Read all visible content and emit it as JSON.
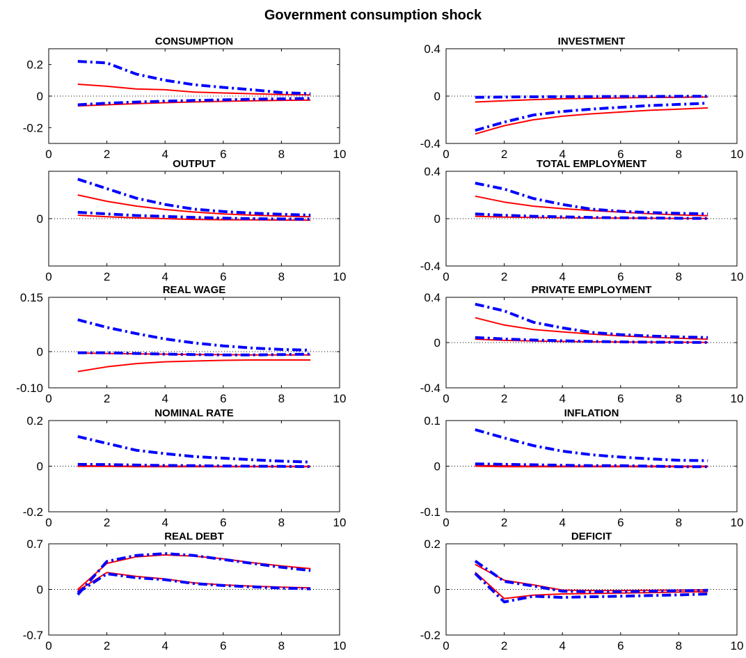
{
  "figure": {
    "title": "Government consumption shock"
  },
  "chart_data": [
    {
      "type": "line",
      "title": "CONSUMPTION",
      "xlim": [
        0,
        10
      ],
      "ylim": [
        -0.3,
        0.3
      ],
      "xticks": [
        0,
        2,
        4,
        6,
        8,
        10
      ],
      "xtick_labels": [
        "0",
        "2",
        "4",
        "6",
        "8",
        "10"
      ],
      "yticks": [
        0.2,
        0,
        -0.2
      ],
      "ytick_labels": [
        "0.2",
        "0",
        "-0.2"
      ],
      "x": [
        1,
        2,
        3,
        4,
        5,
        6,
        7,
        8,
        9
      ],
      "series": [
        {
          "style": "solid",
          "color": "#ff0000",
          "values": [
            0.075,
            0.062,
            0.045,
            0.04,
            0.025,
            0.02,
            0.015,
            0.01,
            0.008
          ]
        },
        {
          "style": "solid",
          "color": "#ff0000",
          "values": [
            -0.062,
            -0.055,
            -0.048,
            -0.042,
            -0.037,
            -0.033,
            -0.03,
            -0.027,
            -0.025
          ]
        },
        {
          "style": "dashdot",
          "color": "#0000ff",
          "values": [
            0.22,
            0.21,
            0.14,
            0.1,
            0.072,
            0.055,
            0.04,
            0.022,
            0.015
          ]
        },
        {
          "style": "dashdot",
          "color": "#0000ff",
          "values": [
            -0.055,
            -0.045,
            -0.038,
            -0.032,
            -0.028,
            -0.024,
            -0.02,
            -0.017,
            -0.015
          ]
        }
      ]
    },
    {
      "type": "line",
      "title": "INVESTMENT",
      "xlim": [
        0,
        10
      ],
      "ylim": [
        -0.4,
        0.4
      ],
      "xticks": [
        0,
        2,
        4,
        6,
        8,
        10
      ],
      "xtick_labels": [
        "0",
        "2",
        "4",
        "6",
        "8",
        "10"
      ],
      "yticks": [
        0.4,
        0,
        -0.4
      ],
      "ytick_labels": [
        "0.4",
        "0",
        "-0.4"
      ],
      "x": [
        1,
        2,
        3,
        4,
        5,
        6,
        7,
        8,
        9
      ],
      "series": [
        {
          "style": "solid",
          "color": "#ff0000",
          "values": [
            -0.05,
            -0.04,
            -0.03,
            -0.022,
            -0.018,
            -0.015,
            -0.012,
            -0.01,
            -0.008
          ]
        },
        {
          "style": "solid",
          "color": "#ff0000",
          "values": [
            -0.32,
            -0.25,
            -0.2,
            -0.17,
            -0.15,
            -0.135,
            -0.12,
            -0.11,
            -0.1
          ]
        },
        {
          "style": "dashdot",
          "color": "#0000ff",
          "values": [
            -0.01,
            -0.008,
            -0.006,
            -0.005,
            -0.004,
            -0.003,
            -0.003,
            -0.002,
            -0.002
          ]
        },
        {
          "style": "dashdot",
          "color": "#0000ff",
          "values": [
            -0.29,
            -0.22,
            -0.16,
            -0.13,
            -0.11,
            -0.095,
            -0.08,
            -0.07,
            -0.06
          ]
        }
      ]
    },
    {
      "type": "line",
      "title": "OUTPUT",
      "xlim": [
        0,
        10
      ],
      "ylim": [
        -0.3,
        0.3
      ],
      "xticks": [
        0,
        2,
        4,
        6,
        8,
        10
      ],
      "xtick_labels": [
        "0",
        "2",
        "4",
        "6",
        "8",
        "10"
      ],
      "yticks": [
        0
      ],
      "ytick_labels": [
        "0"
      ],
      "x": [
        1,
        2,
        3,
        4,
        5,
        6,
        7,
        8,
        9
      ],
      "series": [
        {
          "style": "solid",
          "color": "#ff0000",
          "values": [
            0.15,
            0.11,
            0.08,
            0.058,
            0.042,
            0.03,
            0.022,
            0.016,
            0.012
          ]
        },
        {
          "style": "solid",
          "color": "#ff0000",
          "values": [
            0.022,
            0.012,
            0.005,
            0.0,
            -0.005,
            -0.007,
            -0.008,
            -0.009,
            -0.01
          ]
        },
        {
          "style": "dashdot",
          "color": "#0000ff",
          "values": [
            0.25,
            0.19,
            0.13,
            0.09,
            0.06,
            0.045,
            0.035,
            0.028,
            0.022
          ]
        },
        {
          "style": "dashdot",
          "color": "#0000ff",
          "values": [
            0.04,
            0.03,
            0.02,
            0.014,
            0.008,
            0.003,
            0.0,
            -0.002,
            -0.004
          ]
        }
      ]
    },
    {
      "type": "line",
      "title": "TOTAL EMPLOYMENT",
      "xlim": [
        0,
        10
      ],
      "ylim": [
        -0.4,
        0.4
      ],
      "xticks": [
        0,
        2,
        4,
        6,
        8,
        10
      ],
      "xtick_labels": [
        "0",
        "2",
        "4",
        "6",
        "8",
        "10"
      ],
      "yticks": [
        0.4,
        0,
        -0.4
      ],
      "ytick_labels": [
        "0.4",
        "0",
        "-0.4"
      ],
      "x": [
        1,
        2,
        3,
        4,
        5,
        6,
        7,
        8,
        9
      ],
      "series": [
        {
          "style": "solid",
          "color": "#ff0000",
          "values": [
            0.19,
            0.14,
            0.105,
            0.085,
            0.068,
            0.055,
            0.042,
            0.032,
            0.025
          ]
        },
        {
          "style": "solid",
          "color": "#ff0000",
          "values": [
            0.02,
            0.013,
            0.01,
            0.007,
            0.005,
            0.004,
            0.003,
            0.002,
            0.002
          ]
        },
        {
          "style": "dashdot",
          "color": "#0000ff",
          "values": [
            0.3,
            0.25,
            0.17,
            0.12,
            0.08,
            0.062,
            0.052,
            0.045,
            0.04
          ]
        },
        {
          "style": "dashdot",
          "color": "#0000ff",
          "values": [
            0.04,
            0.028,
            0.02,
            0.015,
            0.01,
            0.007,
            0.005,
            0.003,
            0.002
          ]
        }
      ]
    },
    {
      "type": "line",
      "title": "REAL WAGE",
      "xlim": [
        0,
        10
      ],
      "ylim": [
        -0.1,
        0.15
      ],
      "xticks": [
        0,
        2,
        4,
        6,
        8,
        10
      ],
      "xtick_labels": [
        "0",
        "2",
        "4",
        "6",
        "8",
        "10"
      ],
      "yticks": [
        0.15,
        0,
        -0.1
      ],
      "ytick_labels": [
        "0.15",
        "0",
        "-0.10"
      ],
      "x": [
        1,
        2,
        3,
        4,
        5,
        6,
        7,
        8,
        9
      ],
      "series": [
        {
          "style": "solid",
          "color": "#ff0000",
          "values": [
            -0.004,
            -0.005,
            -0.006,
            -0.007,
            -0.008,
            -0.008,
            -0.009,
            -0.009,
            -0.009
          ]
        },
        {
          "style": "solid",
          "color": "#ff0000",
          "values": [
            -0.055,
            -0.042,
            -0.033,
            -0.028,
            -0.026,
            -0.024,
            -0.023,
            -0.023,
            -0.023
          ]
        },
        {
          "style": "dashdot",
          "color": "#0000ff",
          "values": [
            0.088,
            0.067,
            0.05,
            0.035,
            0.024,
            0.016,
            0.01,
            0.006,
            0.004
          ]
        },
        {
          "style": "dashdot",
          "color": "#0000ff",
          "values": [
            -0.003,
            -0.003,
            -0.005,
            -0.007,
            -0.008,
            -0.009,
            -0.009,
            -0.008,
            -0.007
          ]
        }
      ]
    },
    {
      "type": "line",
      "title": "PRIVATE EMPLOYMENT",
      "xlim": [
        0,
        10
      ],
      "ylim": [
        -0.4,
        0.4
      ],
      "xticks": [
        0,
        2,
        4,
        6,
        8,
        10
      ],
      "xtick_labels": [
        "0",
        "2",
        "4",
        "6",
        "8",
        "10"
      ],
      "yticks": [
        0.4,
        0,
        -0.4
      ],
      "ytick_labels": [
        "0.4",
        "0",
        "-0.4"
      ],
      "x": [
        1,
        2,
        3,
        4,
        5,
        6,
        7,
        8,
        9
      ],
      "series": [
        {
          "style": "solid",
          "color": "#ff0000",
          "values": [
            0.22,
            0.155,
            0.115,
            0.095,
            0.075,
            0.06,
            0.048,
            0.038,
            0.03
          ]
        },
        {
          "style": "solid",
          "color": "#ff0000",
          "values": [
            0.03,
            0.02,
            0.014,
            0.01,
            0.007,
            0.005,
            0.004,
            0.003,
            0.002
          ]
        },
        {
          "style": "dashdot",
          "color": "#0000ff",
          "values": [
            0.34,
            0.28,
            0.18,
            0.13,
            0.09,
            0.07,
            0.058,
            0.05,
            0.045
          ]
        },
        {
          "style": "dashdot",
          "color": "#0000ff",
          "values": [
            0.045,
            0.032,
            0.022,
            0.016,
            0.01,
            0.006,
            0.004,
            0.002,
            0.001
          ]
        }
      ]
    },
    {
      "type": "line",
      "title": "NOMINAL RATE",
      "xlim": [
        0,
        10
      ],
      "ylim": [
        -0.2,
        0.2
      ],
      "xticks": [
        0,
        2,
        4,
        6,
        8,
        10
      ],
      "xtick_labels": [
        "0",
        "2",
        "4",
        "6",
        "8",
        "10"
      ],
      "yticks": [
        0.2,
        0,
        -0.2
      ],
      "ytick_labels": [
        "0.2",
        "0",
        "-0.2"
      ],
      "x": [
        1,
        2,
        3,
        4,
        5,
        6,
        7,
        8,
        9
      ],
      "series": [
        {
          "style": "solid",
          "color": "#ff0000",
          "values": [
            0.002,
            0.001,
            0.0,
            0.0,
            0.0,
            -0.001,
            -0.001,
            -0.001,
            -0.001
          ]
        },
        {
          "style": "solid",
          "color": "#ff0000",
          "values": [
            -0.001,
            -0.001,
            -0.002,
            -0.002,
            -0.002,
            -0.002,
            -0.002,
            -0.002,
            -0.002
          ]
        },
        {
          "style": "dashdot",
          "color": "#0000ff",
          "values": [
            0.13,
            0.1,
            0.07,
            0.055,
            0.042,
            0.035,
            0.028,
            0.022,
            0.018
          ]
        },
        {
          "style": "dashdot",
          "color": "#0000ff",
          "values": [
            0.008,
            0.007,
            0.005,
            0.003,
            0.002,
            0.001,
            0.0,
            -0.001,
            -0.002
          ]
        }
      ]
    },
    {
      "type": "line",
      "title": "INFLATION",
      "xlim": [
        0,
        10
      ],
      "ylim": [
        -0.1,
        0.1
      ],
      "xticks": [
        0,
        2,
        4,
        6,
        8,
        10
      ],
      "xtick_labels": [
        "0",
        "2",
        "4",
        "6",
        "8",
        "10"
      ],
      "yticks": [
        0.1,
        0,
        -0.1
      ],
      "ytick_labels": [
        "0.1",
        "0",
        "-0.1"
      ],
      "x": [
        1,
        2,
        3,
        4,
        5,
        6,
        7,
        8,
        9
      ],
      "series": [
        {
          "style": "solid",
          "color": "#ff0000",
          "values": [
            0.001,
            0.001,
            0.0,
            0.0,
            0.0,
            0.0,
            0.0,
            0.0,
            0.0
          ]
        },
        {
          "style": "solid",
          "color": "#ff0000",
          "values": [
            0.0,
            -0.001,
            -0.001,
            -0.001,
            -0.001,
            -0.001,
            -0.001,
            -0.001,
            -0.001
          ]
        },
        {
          "style": "dashdot",
          "color": "#0000ff",
          "values": [
            0.08,
            0.062,
            0.045,
            0.033,
            0.025,
            0.02,
            0.016,
            0.013,
            0.012
          ]
        },
        {
          "style": "dashdot",
          "color": "#0000ff",
          "values": [
            0.005,
            0.004,
            0.003,
            0.002,
            0.001,
            0.001,
            0.0,
            -0.001,
            -0.001
          ]
        }
      ]
    },
    {
      "type": "line",
      "title": "REAL DEBT",
      "xlim": [
        0,
        10
      ],
      "ylim": [
        -0.7,
        0.7
      ],
      "xticks": [
        0,
        2,
        4,
        6,
        8,
        10
      ],
      "xtick_labels": [
        "0",
        "2",
        "4",
        "6",
        "8",
        "10"
      ],
      "yticks": [
        0.7,
        0,
        -0.7
      ],
      "ytick_labels": [
        "0.7",
        "0",
        "-0.7"
      ],
      "x": [
        1,
        2,
        3,
        4,
        5,
        6,
        7,
        8,
        9
      ],
      "series": [
        {
          "style": "solid",
          "color": "#ff0000",
          "values": [
            0.0,
            0.4,
            0.5,
            0.53,
            0.51,
            0.47,
            0.41,
            0.36,
            0.32
          ]
        },
        {
          "style": "solid",
          "color": "#ff0000",
          "values": [
            -0.02,
            0.26,
            0.2,
            0.16,
            0.1,
            0.07,
            0.05,
            0.035,
            0.025
          ]
        },
        {
          "style": "dashdot",
          "color": "#0000ff",
          "values": [
            -0.08,
            0.43,
            0.52,
            0.55,
            0.52,
            0.46,
            0.4,
            0.34,
            0.29
          ]
        },
        {
          "style": "dashdot",
          "color": "#0000ff",
          "values": [
            -0.05,
            0.24,
            0.18,
            0.15,
            0.09,
            0.06,
            0.04,
            0.02,
            0.01
          ]
        }
      ]
    },
    {
      "type": "line",
      "title": "DEFICIT",
      "xlim": [
        0,
        10
      ],
      "ylim": [
        -0.2,
        0.2
      ],
      "xticks": [
        0,
        2,
        4,
        6,
        8,
        10
      ],
      "xtick_labels": [
        "0",
        "2",
        "4",
        "6",
        "8",
        "10"
      ],
      "yticks": [
        0.2,
        0,
        -0.2
      ],
      "ytick_labels": [
        "0.2",
        "0",
        "-0.2"
      ],
      "x": [
        1,
        2,
        3,
        4,
        5,
        6,
        7,
        8,
        9
      ],
      "series": [
        {
          "style": "solid",
          "color": "#ff0000",
          "values": [
            0.11,
            0.04,
            0.02,
            -0.003,
            -0.005,
            -0.005,
            -0.004,
            -0.003,
            -0.002
          ]
        },
        {
          "style": "solid",
          "color": "#ff0000",
          "values": [
            0.075,
            -0.04,
            -0.025,
            -0.02,
            -0.018,
            -0.016,
            -0.014,
            -0.012,
            -0.01
          ]
        },
        {
          "style": "dashdot",
          "color": "#0000ff",
          "values": [
            0.125,
            0.035,
            0.015,
            -0.008,
            -0.01,
            -0.01,
            -0.008,
            -0.006,
            -0.004
          ]
        },
        {
          "style": "dashdot",
          "color": "#0000ff",
          "values": [
            0.07,
            -0.055,
            -0.03,
            -0.035,
            -0.032,
            -0.03,
            -0.027,
            -0.024,
            -0.02
          ]
        }
      ]
    }
  ]
}
